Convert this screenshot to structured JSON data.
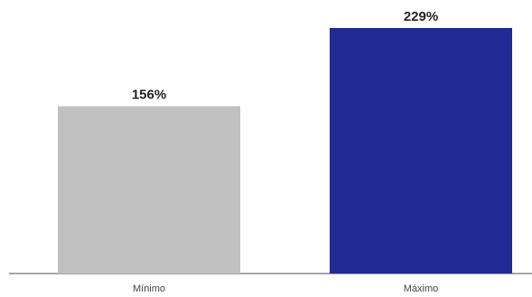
{
  "chart_data": {
    "type": "bar",
    "categories": [
      "Mínimo",
      "Máximo"
    ],
    "values": [
      156,
      229
    ],
    "value_labels": [
      "156%",
      "229%"
    ],
    "colors": [
      "#c0c0c0",
      "#1f2a94"
    ],
    "title": "",
    "xlabel": "",
    "ylabel": "",
    "ylim": [
      0,
      229
    ],
    "grid": false,
    "legend": "none"
  }
}
